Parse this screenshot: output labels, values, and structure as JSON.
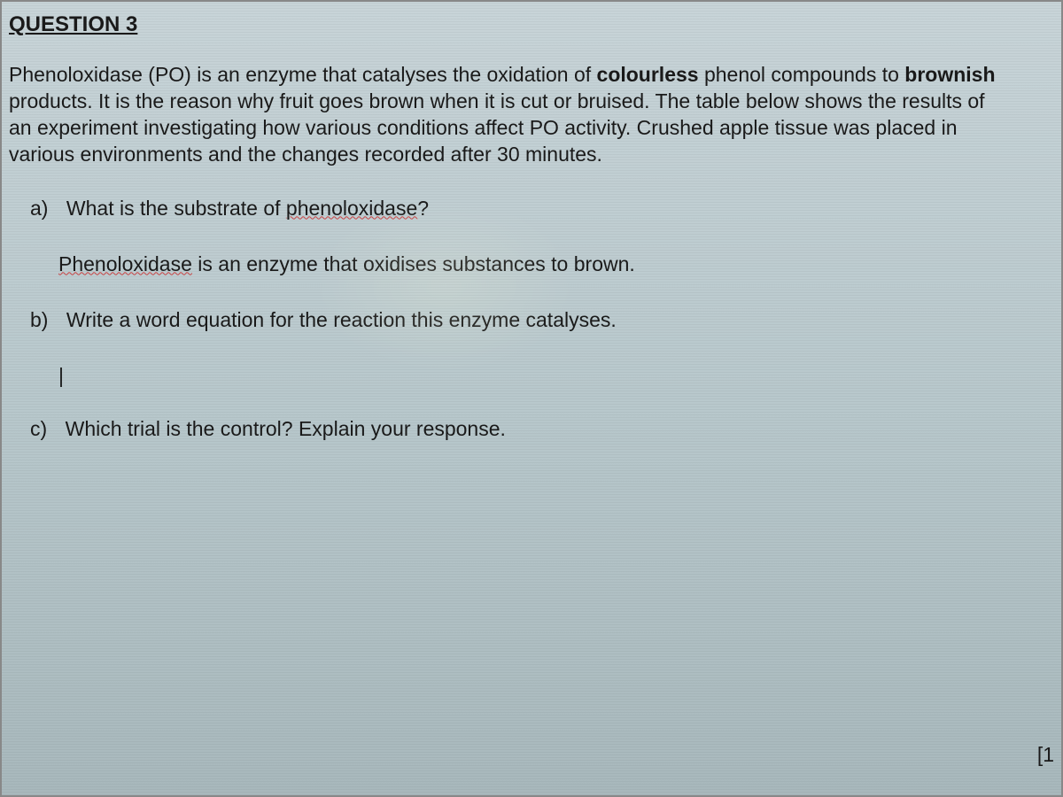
{
  "header": {
    "title": "QUESTION 3"
  },
  "intro": {
    "line1_pre": "Phenoloxidase (PO) is an enzyme that catalyses the oxidation of ",
    "line1_bold": "colourless",
    "line1_post": " phenol compounds to ",
    "line1_bold2": "brownish",
    "line2": "products. It is the reason why fruit goes brown when it is cut or bruised. The table below shows the results of",
    "line3": "an experiment investigating how various conditions affect PO activity. Crushed apple tissue was placed in",
    "line4": "various environments and the changes recorded after 30 minutes."
  },
  "questions": {
    "a": {
      "label": "a)",
      "text_pre": "What is the substrate of ",
      "text_wavy": "phenoloxidase",
      "text_post": "?"
    },
    "a_answer": {
      "text_wavy": "Phenoloxidase",
      "text_post": " is an enzyme that oxidises substances to brown."
    },
    "b": {
      "label": "b)",
      "text": "Write a word equation for the reaction this enzyme catalyses."
    },
    "c": {
      "label": "c)",
      "text": "Which trial is the control? Explain your response."
    }
  },
  "page_marker": "[1",
  "styling": {
    "background_gradient_top": "#c8d4d8",
    "background_gradient_mid": "#b8c8cc",
    "background_gradient_bottom": "#a8b8bc",
    "text_color": "#1a1a1a",
    "wavy_underline_color": "#cc4444",
    "font_family": "Arial, sans-serif",
    "header_fontsize": 24,
    "body_fontsize": 23,
    "scanline_opacity": 0.04
  }
}
